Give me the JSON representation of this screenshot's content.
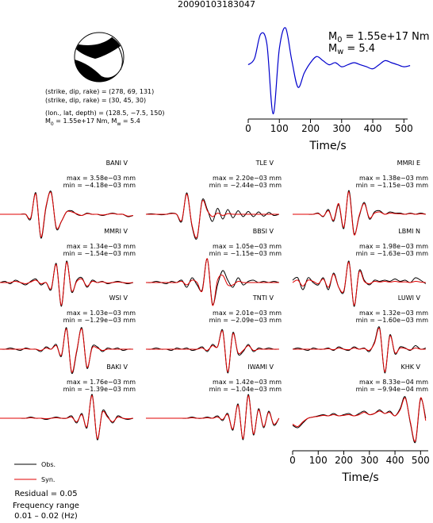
{
  "title": "20090103183047",
  "mechanism": {
    "lines": [
      "(strike, dip, rake) = (278, 69, 131)",
      "(strike, dip, rake) = (30, 45, 30)",
      "(lon., lat, depth) = (128.5, −7.5, 150)"
    ],
    "moment_line": [
      "M",
      "0",
      " = 1.55e+17 Nm, M",
      "w",
      " = 5.4"
    ]
  },
  "chart_data": [
    {
      "type": "line",
      "name": "source-time-function",
      "x": [
        0,
        20,
        40,
        60,
        80,
        100,
        120,
        140,
        160,
        180,
        200,
        220,
        240,
        260,
        280,
        300,
        320,
        340,
        360,
        380,
        400,
        420,
        440,
        460,
        480,
        500,
        520
      ],
      "values": [
        0.1,
        0.25,
        0.85,
        0.6,
        -1.1,
        0.5,
        1.0,
        0.2,
        -0.45,
        -0.1,
        0.15,
        0.3,
        0.2,
        0.1,
        0.15,
        0.05,
        0.1,
        0.15,
        0.1,
        0.05,
        0.0,
        0.1,
        0.2,
        0.15,
        0.1,
        0.05,
        0.08
      ],
      "color": "#0000cc",
      "xlim": [
        0,
        512
      ],
      "ylim": [
        -1.15,
        1.1
      ],
      "xticks": [
        0,
        100,
        200,
        300,
        400,
        500
      ],
      "xlabel": "Time/s",
      "annotations": [
        [
          "M",
          "0",
          " = 1.55e+17 Nm"
        ],
        [
          "M",
          "w",
          " = 5.4"
        ]
      ]
    },
    {
      "type": "waveforms",
      "name": "waveform-fits",
      "x": [
        0,
        20,
        40,
        60,
        80,
        100,
        120,
        140,
        160,
        180,
        200,
        220,
        240,
        260,
        280,
        300,
        320,
        340,
        360,
        380,
        400,
        420,
        440,
        460,
        480,
        500,
        520
      ],
      "xlim": [
        0,
        530
      ],
      "ylim": [
        -1,
        1
      ],
      "xticks": [
        0,
        100,
        200,
        300,
        400,
        500
      ],
      "xlabel": "Time/s",
      "series": [
        {
          "name": "Obs.",
          "color": "#000000"
        },
        {
          "name": "Syn.",
          "color": "#e00000"
        }
      ],
      "residual": "Residual = 0.05",
      "frequency_title": "Frequency range",
      "frequency_range": "0.01 – 0.02 (Hz)",
      "panels": [
        {
          "station": "BANI V",
          "max": "max = 3.58e−03 mm",
          "min": "min = −4.18e−03 mm",
          "obs": [
            0,
            0,
            0,
            0,
            0,
            0,
            -0.2,
            0.9,
            -1,
            0.3,
            0.95,
            -0.6,
            -0.3,
            0.1,
            0.15,
            0,
            -0.05,
            0.05,
            0,
            0,
            -0.05,
            0,
            0.05,
            0,
            0,
            -0.1,
            -0.05
          ],
          "syn": [
            0,
            0,
            0,
            0,
            0,
            0,
            -0.15,
            0.85,
            -0.95,
            0.35,
            0.9,
            -0.55,
            -0.3,
            0.1,
            0.1,
            0.02,
            -0.05,
            0.03,
            0,
            0,
            -0.03,
            0,
            0.03,
            0,
            0,
            -0.08,
            -0.05
          ]
        },
        {
          "station": "TLE V",
          "max": "max = 2.20e−03 mm",
          "min": "min = −2.44e−03 mm",
          "obs": [
            0,
            0.02,
            0,
            -0.02,
            0,
            0.05,
            0,
            -0.3,
            0.9,
            -0.5,
            -1,
            0.6,
            0.2,
            -0.3,
            0.25,
            -0.2,
            0.2,
            -0.15,
            0.15,
            -0.1,
            0.12,
            -0.1,
            0.1,
            -0.08,
            0.08,
            -0.05,
            0
          ],
          "syn": [
            0,
            0,
            0,
            0,
            0,
            0.03,
            0,
            -0.25,
            0.85,
            -0.45,
            -0.95,
            0.55,
            0.15,
            -0.1,
            0.05,
            -0.05,
            0.03,
            0,
            0,
            0,
            0,
            0,
            0,
            0,
            0,
            0,
            0
          ]
        },
        {
          "station": "MMRI E",
          "max": "max = 1.38e−03 mm",
          "min": "min = −1.15e−03 mm",
          "obs": [
            0,
            0,
            0,
            0,
            0,
            0.05,
            -0.1,
            0.2,
            -0.3,
            0.4,
            -0.6,
            1,
            -0.8,
            -0.1,
            0.5,
            -0.2,
            0.1,
            0.15,
            0,
            0.1,
            0.05,
            0.05,
            0,
            0.05,
            0,
            0.05,
            0
          ],
          "syn": [
            0,
            0,
            0,
            0,
            0,
            0.03,
            -0.08,
            0.15,
            -0.25,
            0.45,
            -0.55,
            0.95,
            -0.85,
            -0.05,
            0.45,
            -0.15,
            0.05,
            0.1,
            0,
            0.05,
            0.03,
            0.02,
            0,
            0.03,
            0,
            0.02,
            0
          ]
        },
        {
          "station": "MMRI V",
          "max": "max = 1.34e−03 mm",
          "min": "min = −1.54e−03 mm",
          "obs": [
            0,
            0.05,
            -0.05,
            0.1,
            0,
            -0.1,
            0.05,
            0.15,
            -0.1,
            0,
            -0.3,
            0.8,
            -1,
            0.9,
            -0.4,
            0.1,
            0.2,
            -0.2,
            0.1,
            0,
            0.05,
            -0.05,
            0,
            0.05,
            0,
            -0.05,
            0
          ],
          "syn": [
            0,
            0,
            0,
            0.05,
            0,
            -0.05,
            0.02,
            0.1,
            -0.05,
            0,
            -0.25,
            0.75,
            -0.95,
            0.85,
            -0.35,
            0.05,
            0.15,
            -0.15,
            0.05,
            0,
            0.03,
            -0.02,
            0,
            0.02,
            0,
            -0.02,
            0
          ]
        },
        {
          "station": "BBSI V",
          "max": "max = 1.05e−03 mm",
          "min": "min = −1.15e−03 mm",
          "obs": [
            0,
            0,
            0.05,
            0,
            -0.05,
            0.05,
            0,
            0.1,
            -0.2,
            0.2,
            -0.1,
            -0.3,
            1,
            -0.9,
            -0.1,
            0.5,
            0.1,
            -0.2,
            0.2,
            -0.1,
            0.05,
            0.1,
            0,
            0.05,
            0,
            0.05,
            0
          ],
          "syn": [
            0,
            0,
            0,
            0,
            0,
            0,
            0,
            0.05,
            -0.1,
            0.1,
            0,
            -0.35,
            1,
            -0.95,
            0.1,
            0.3,
            -0.1,
            -0.1,
            0.05,
            0,
            0,
            0,
            0,
            0,
            0,
            0,
            0
          ]
        },
        {
          "station": "LBMI N",
          "max": "max = 1.98e−03 mm",
          "min": "min = −1.63e−03 mm",
          "obs": [
            0.1,
            0.2,
            -0.3,
            0.2,
            0,
            -0.1,
            0.2,
            -0.3,
            0.4,
            -0.2,
            -0.4,
            0.9,
            -1,
            0.5,
            0.1,
            -0.1,
            0.1,
            0.05,
            0.1,
            0.05,
            0.15,
            0.05,
            0.1,
            0,
            0.2,
            0.1,
            -0.05
          ],
          "syn": [
            0,
            0.1,
            -0.15,
            0.1,
            0.05,
            -0.05,
            0.15,
            -0.2,
            0.35,
            -0.2,
            -0.35,
            0.85,
            -0.95,
            0.45,
            0.05,
            -0.05,
            0.05,
            0.02,
            0.05,
            0.02,
            0.05,
            0.02,
            0.03,
            0,
            0.05,
            0.02,
            0
          ]
        },
        {
          "station": "WSI V",
          "max": "max = 1.03e−03 mm",
          "min": "min = −1.29e−03 mm",
          "obs": [
            0,
            0,
            0.05,
            0,
            -0.05,
            0.05,
            0,
            0,
            -0.1,
            0.1,
            0,
            0.2,
            -0.3,
            0.9,
            -1,
            -0.1,
            0.9,
            -0.8,
            0.1,
            0.1,
            -0.1,
            0.05,
            0,
            0.05,
            -0.05,
            0,
            0
          ],
          "syn": [
            0,
            0,
            0,
            0,
            0,
            0.02,
            0,
            0,
            -0.05,
            0.05,
            0,
            0.15,
            -0.25,
            0.85,
            -0.95,
            -0.05,
            0.85,
            -0.75,
            0.05,
            0.05,
            -0.05,
            0,
            0,
            0,
            0,
            0,
            0
          ]
        },
        {
          "station": "TNTI V",
          "max": "max = 2.01e−03 mm",
          "min": "min = −2.09e−03 mm",
          "obs": [
            0,
            0,
            0.05,
            0,
            0,
            -0.05,
            0.05,
            0,
            0.05,
            -0.05,
            0,
            0.1,
            -0.1,
            0.2,
            0.1,
            0.8,
            -1,
            0.7,
            -0.2,
            -0.1,
            0.2,
            -0.1,
            0.05,
            0,
            0.05,
            0,
            0
          ],
          "syn": [
            0,
            0,
            0,
            0,
            0,
            0,
            0,
            0,
            0,
            0,
            0,
            0.05,
            -0.05,
            0.15,
            0.1,
            0.75,
            -0.95,
            0.65,
            -0.15,
            -0.05,
            0.15,
            -0.05,
            0,
            0,
            0,
            0,
            0
          ]
        },
        {
          "station": "LUWI V",
          "max": "max = 1.32e−03 mm",
          "min": "min = −1.60e−03 mm",
          "obs": [
            0,
            0.05,
            0,
            -0.05,
            0.05,
            0,
            0,
            0.05,
            -0.05,
            0.1,
            0,
            -0.05,
            0.1,
            0,
            0.05,
            -0.1,
            0.3,
            0.9,
            -1,
            0.6,
            -0.2,
            0.1,
            0.05,
            -0.05,
            0.15,
            0,
            0.05
          ],
          "syn": [
            0,
            0,
            0,
            0,
            0,
            0,
            0,
            0.02,
            -0.02,
            0.05,
            0,
            -0.02,
            0.05,
            0,
            0.03,
            -0.05,
            0.25,
            0.85,
            -0.95,
            0.55,
            -0.15,
            0.05,
            0.03,
            -0.03,
            0.05,
            0,
            0
          ]
        },
        {
          "station": "BAKI V",
          "max": "max = 1.76e−03 mm",
          "min": "min = −1.39e−03 mm",
          "obs": [
            0,
            0,
            0,
            0,
            0,
            0,
            0.05,
            0,
            0,
            -0.05,
            0,
            0.05,
            0,
            0,
            0.1,
            -0.2,
            0.2,
            -0.4,
            1,
            -0.9,
            0.3,
            0.1,
            -0.2,
            0.1,
            0,
            -0.05,
            0
          ],
          "syn": [
            0,
            0,
            0,
            0,
            0,
            0,
            0.02,
            0,
            0,
            -0.02,
            0,
            0.02,
            0,
            0,
            0.05,
            -0.15,
            0.15,
            -0.35,
            0.95,
            -0.85,
            0.25,
            0.05,
            -0.15,
            0.05,
            0,
            -0.02,
            0
          ]
        },
        {
          "station": "IWAMI V",
          "max": "max = 1.42e−03 mm",
          "min": "min = −1.04e−03 mm",
          "obs": [
            0,
            0,
            0,
            0,
            0,
            0,
            0,
            0,
            0,
            0.05,
            0,
            0,
            0.05,
            0,
            0.1,
            -0.1,
            0.2,
            -0.5,
            0.6,
            -0.9,
            1,
            -0.7,
            0.4,
            -0.4,
            0.3,
            -0.3,
            0
          ],
          "syn": [
            0,
            0,
            0,
            0,
            0,
            0,
            0,
            0,
            0,
            0.02,
            0,
            0,
            0.02,
            0,
            0.05,
            -0.05,
            0.15,
            -0.45,
            0.55,
            -0.85,
            0.95,
            -0.65,
            0.35,
            -0.35,
            0.25,
            -0.25,
            0
          ]
        },
        {
          "station": "KHK V",
          "max": "max = 8.33e−04 mm",
          "min": "min = −9.94e−04 mm",
          "obs": [
            -0.3,
            -0.4,
            -0.2,
            0,
            0.05,
            0.1,
            0.15,
            0.1,
            0.2,
            0.1,
            0.15,
            0.2,
            0.1,
            0.2,
            0.3,
            0.15,
            0.2,
            0.35,
            0.2,
            0.3,
            0.1,
            0.4,
            0.9,
            -0.2,
            -1,
            0.8,
            0
          ],
          "syn": [
            -0.25,
            -0.35,
            -0.15,
            0,
            0.05,
            0.08,
            0.12,
            0.1,
            0.15,
            0.1,
            0.12,
            0.15,
            0.1,
            0.15,
            0.25,
            0.15,
            0.2,
            0.3,
            0.2,
            0.25,
            0.1,
            0.35,
            0.85,
            -0.15,
            -0.95,
            0.85,
            -0.1
          ]
        }
      ]
    }
  ]
}
